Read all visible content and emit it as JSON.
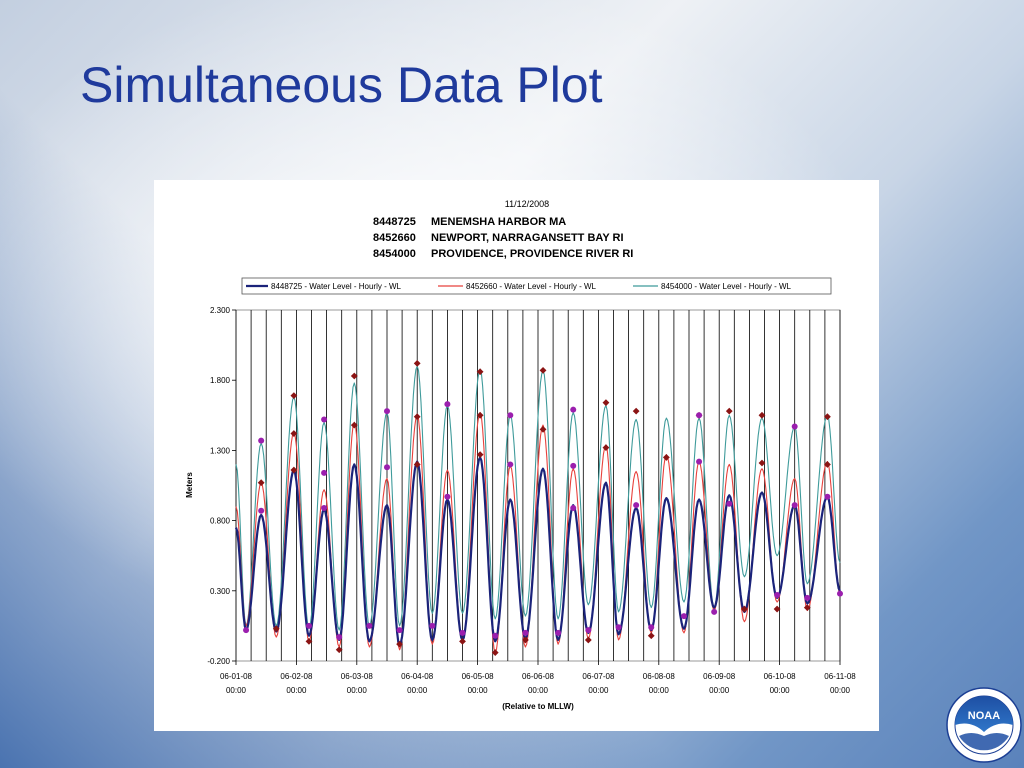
{
  "slide": {
    "title": "Simultaneous Data Plot"
  },
  "chart_data": {
    "type": "line",
    "date_stamp": "11/12/2008",
    "stations": [
      {
        "id": "8448725",
        "name": "MENEMSHA HARBOR MA"
      },
      {
        "id": "8452660",
        "name": "NEWPORT, NARRAGANSETT BAY RI"
      },
      {
        "id": "8454000",
        "name": "PROVIDENCE, PROVIDENCE RIVER RI"
      }
    ],
    "ylabel": "Meters",
    "xlabel": "(Relative to MLLW)",
    "ylim": [
      -0.2,
      2.3
    ],
    "y_ticks": [
      "2.300",
      "1.800",
      "1.300",
      "0.800",
      "0.300",
      "-0.200"
    ],
    "xlim": [
      "06-01-08 00:00",
      "06-11-08 00:00"
    ],
    "x_ticks": [
      {
        "date": "06-01-08",
        "time": "00:00"
      },
      {
        "date": "06-02-08",
        "time": "00:00"
      },
      {
        "date": "06-03-08",
        "time": "00:00"
      },
      {
        "date": "06-04-08",
        "time": "00:00"
      },
      {
        "date": "06-05-08",
        "time": "00:00"
      },
      {
        "date": "06-06-08",
        "time": "00:00"
      },
      {
        "date": "06-07-08",
        "time": "00:00"
      },
      {
        "date": "06-08-08",
        "time": "00:00"
      },
      {
        "date": "06-09-08",
        "time": "00:00"
      },
      {
        "date": "06-10-08",
        "time": "00:00"
      },
      {
        "date": "06-11-08",
        "time": "00:00"
      }
    ],
    "grid": "vertical",
    "grid_interval_hours": 6,
    "legend": "top",
    "x": [
      "06-01-08 00:00",
      "06-01-08 04:00",
      "06-01-08 10:00",
      "06-01-08 16:00",
      "06-01-08 23:00",
      "06-02-08 05:00",
      "06-02-08 11:00",
      "06-02-08 17:00",
      "06-02-08 23:00",
      "06-03-08 05:00",
      "06-03-08 12:00",
      "06-03-08 17:00",
      "06-04-08 00:00",
      "06-04-08 06:00",
      "06-04-08 12:00",
      "06-04-08 18:00",
      "06-05-08 01:00",
      "06-05-08 07:00",
      "06-05-08 13:00",
      "06-05-08 19:00",
      "06-06-08 02:00",
      "06-06-08 08:00",
      "06-06-08 14:00",
      "06-06-08 20:00",
      "06-07-08 03:00",
      "06-07-08 08:00",
      "06-07-08 15:00",
      "06-07-08 21:00",
      "06-08-08 03:00",
      "06-08-08 10:00",
      "06-08-08 16:00",
      "06-08-08 22:00",
      "06-09-08 04:00",
      "06-09-08 10:00",
      "06-09-08 17:00",
      "06-09-08 23:00",
      "06-10-08 06:00",
      "06-10-08 11:00",
      "06-10-08 19:00",
      "06-11-08 00:00"
    ],
    "series": [
      {
        "name": "8448725 - Water Level - Hourly - WL",
        "color": "#1b237a",
        "values": [
          0.75,
          0.02,
          0.84,
          0.01,
          1.16,
          -0.02,
          0.88,
          -0.05,
          1.2,
          -0.06,
          0.91,
          -0.09,
          1.22,
          -0.05,
          0.95,
          -0.05,
          1.25,
          -0.06,
          0.95,
          -0.04,
          1.17,
          -0.05,
          0.91,
          0.0,
          1.07,
          -0.01,
          0.89,
          0.02,
          0.96,
          0.03,
          0.95,
          0.18,
          0.98,
          0.15,
          1.0,
          0.25,
          0.91,
          0.21,
          0.97,
          0.3
        ]
      },
      {
        "name": "8452660 - Water Level - Hourly - WL",
        "color": "#e8413c",
        "values": [
          0.9,
          0.05,
          1.07,
          -0.03,
          1.43,
          -0.06,
          1.02,
          -0.1,
          1.5,
          -0.1,
          1.1,
          -0.12,
          1.55,
          -0.08,
          1.16,
          -0.06,
          1.57,
          -0.14,
          1.19,
          -0.1,
          1.48,
          -0.08,
          1.17,
          -0.04,
          1.34,
          -0.05,
          1.15,
          0.0,
          1.27,
          0.0,
          1.22,
          0.16,
          1.2,
          0.08,
          1.17,
          0.22,
          1.1,
          0.16,
          1.22,
          0.28
        ]
      },
      {
        "name": "8454000 - Water Level - Hourly - WL",
        "color": "#3f9b9b",
        "values": [
          1.2,
          0.05,
          1.35,
          0.05,
          1.68,
          0.03,
          1.5,
          0.02,
          1.78,
          0.05,
          1.57,
          0.05,
          1.9,
          0.14,
          1.62,
          0.14,
          1.88,
          0.1,
          1.55,
          0.12,
          1.87,
          0.1,
          1.57,
          0.2,
          1.62,
          0.15,
          1.52,
          0.18,
          1.53,
          0.22,
          1.53,
          0.18,
          1.55,
          0.4,
          1.53,
          0.55,
          1.47,
          0.35,
          1.55,
          0.5
        ]
      }
    ],
    "markers": [
      {
        "shape": "diamond",
        "color": "#8b1414",
        "points": [
          [
            "06-01-08 10:00",
            1.07
          ],
          [
            "06-01-08 23:00",
            1.69
          ],
          [
            "06-01-08 23:00",
            1.42
          ],
          [
            "06-01-08 23:00",
            1.16
          ],
          [
            "06-02-08 23:00",
            1.83
          ],
          [
            "06-02-08 23:00",
            1.48
          ],
          [
            "06-04-08 00:00",
            1.92
          ],
          [
            "06-04-08 00:00",
            1.54
          ],
          [
            "06-04-08 00:00",
            1.2
          ],
          [
            "06-05-08 01:00",
            1.86
          ],
          [
            "06-05-08 01:00",
            1.55
          ],
          [
            "06-05-08 01:00",
            1.27
          ],
          [
            "06-06-08 02:00",
            1.87
          ],
          [
            "06-06-08 02:00",
            1.45
          ],
          [
            "06-07-08 03:00",
            1.64
          ],
          [
            "06-07-08 03:00",
            1.32
          ],
          [
            "06-07-08 15:00",
            1.58
          ],
          [
            "06-08-08 03:00",
            1.25
          ],
          [
            "06-08-08 16:00",
            1.55
          ],
          [
            "06-09-08 04:00",
            1.58
          ],
          [
            "06-09-08 17:00",
            1.55
          ],
          [
            "06-09-08 17:00",
            1.21
          ],
          [
            "06-10-08 19:00",
            1.54
          ],
          [
            "06-10-08 19:00",
            1.2
          ],
          [
            "06-01-08 16:00",
            0.03
          ],
          [
            "06-02-08 05:00",
            -0.06
          ],
          [
            "06-02-08 17:00",
            -0.12
          ],
          [
            "06-03-08 17:00",
            -0.08
          ],
          [
            "06-04-08 18:00",
            -0.06
          ],
          [
            "06-05-08 07:00",
            -0.14
          ],
          [
            "06-05-08 19:00",
            -0.05
          ],
          [
            "06-06-08 20:00",
            -0.05
          ],
          [
            "06-07-08 21:00",
            -0.02
          ],
          [
            "06-09-08 10:00",
            0.17
          ],
          [
            "06-09-08 23:00",
            0.17
          ],
          [
            "06-10-08 11:00",
            0.18
          ]
        ]
      },
      {
        "shape": "circle",
        "color": "#9b1fae",
        "points": [
          [
            "06-01-08 10:00",
            1.37
          ],
          [
            "06-01-08 10:00",
            0.87
          ],
          [
            "06-02-08 11:00",
            1.52
          ],
          [
            "06-02-08 11:00",
            1.14
          ],
          [
            "06-02-08 11:00",
            0.89
          ],
          [
            "06-03-08 12:00",
            1.58
          ],
          [
            "06-03-08 12:00",
            1.18
          ],
          [
            "06-04-08 12:00",
            1.63
          ],
          [
            "06-04-08 12:00",
            0.97
          ],
          [
            "06-05-08 13:00",
            1.55
          ],
          [
            "06-05-08 13:00",
            1.2
          ],
          [
            "06-06-08 14:00",
            1.59
          ],
          [
            "06-06-08 14:00",
            1.19
          ],
          [
            "06-06-08 14:00",
            0.89
          ],
          [
            "06-07-08 15:00",
            0.91
          ],
          [
            "06-08-08 16:00",
            1.55
          ],
          [
            "06-08-08 16:00",
            1.22
          ],
          [
            "06-09-08 04:00",
            0.92
          ],
          [
            "06-10-08 06:00",
            1.47
          ],
          [
            "06-10-08 06:00",
            0.91
          ],
          [
            "06-10-08 19:00",
            0.97
          ],
          [
            "06-01-08 04:00",
            0.02
          ],
          [
            "06-02-08 05:00",
            0.05
          ],
          [
            "06-02-08 17:00",
            -0.03
          ],
          [
            "06-03-08 05:00",
            0.05
          ],
          [
            "06-03-08 17:00",
            0.02
          ],
          [
            "06-04-08 06:00",
            0.05
          ],
          [
            "06-04-08 18:00",
            0.0
          ],
          [
            "06-05-08 07:00",
            -0.02
          ],
          [
            "06-05-08 19:00",
            0.0
          ],
          [
            "06-06-08 08:00",
            0.0
          ],
          [
            "06-06-08 20:00",
            0.02
          ],
          [
            "06-07-08 08:00",
            0.04
          ],
          [
            "06-07-08 21:00",
            0.04
          ],
          [
            "06-08-08 10:00",
            0.12
          ],
          [
            "06-08-08 22:00",
            0.15
          ],
          [
            "06-09-08 23:00",
            0.27
          ],
          [
            "06-10-08 11:00",
            0.25
          ],
          [
            "06-11-08 00:00",
            0.28
          ]
        ]
      }
    ]
  },
  "logo": {
    "text": "NOAA"
  }
}
